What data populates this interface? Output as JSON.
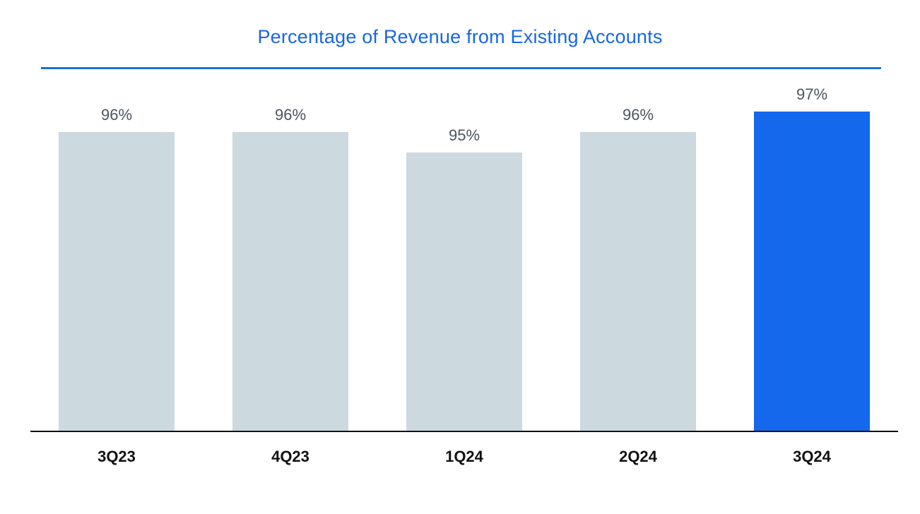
{
  "chart_data": {
    "type": "bar",
    "title": "Percentage of Revenue from Existing Accounts",
    "categories": [
      "3Q23",
      "4Q23",
      "1Q24",
      "2Q24",
      "3Q24"
    ],
    "values": [
      96,
      96,
      95,
      96,
      97
    ],
    "value_labels": [
      "96%",
      "96%",
      "95%",
      "96%",
      "97%"
    ],
    "xlabel": "",
    "ylabel": "",
    "unit": "%",
    "grid": false,
    "highlight_index": 4
  },
  "colors": {
    "title": "#1766e4",
    "title_rule": "#1a6ee6",
    "bar_default": "#ccd9df",
    "bar_highlight": "#1368ec",
    "axis": "#111111",
    "value_label": "#4a5560",
    "category_label": "#111111"
  }
}
